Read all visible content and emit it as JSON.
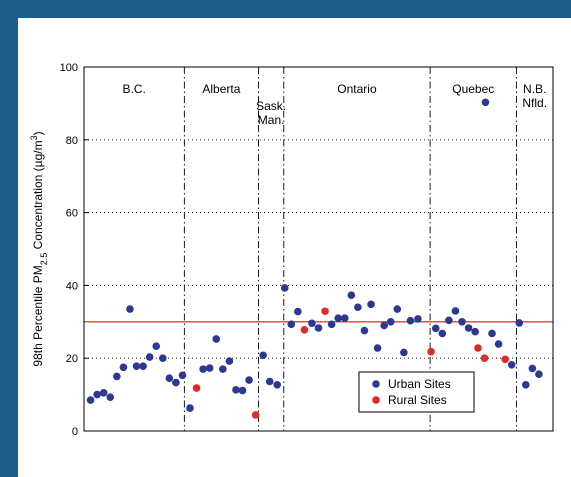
{
  "colors": {
    "frame": "#1b5e8c",
    "urban": "#2b3990",
    "rural": "#e02a27",
    "reference": "#e0403a"
  },
  "chart_data": {
    "type": "scatter",
    "ylabel_prefix": "98th Percentile PM",
    "ylabel_sub": "2.5",
    "ylabel_mid": " Concentration (µg/m",
    "ylabel_sup": "3",
    "ylabel_suffix": ")",
    "ylim": [
      0,
      100
    ],
    "yticks": [
      0,
      20,
      40,
      60,
      80,
      100
    ],
    "xlim": [
      0,
      50
    ],
    "grid": "dotted horizontal",
    "legend_position": "bottom-right",
    "reference_line": 30,
    "regions": [
      {
        "label": "B.C.",
        "x_start": 0,
        "x_end": 10.7
      },
      {
        "label": "Alberta",
        "x_start": 10.7,
        "x_end": 18.6
      },
      {
        "label": "Sask.",
        "label2": "Man.",
        "x_start": 18.6,
        "x_end": 21.3
      },
      {
        "label": "Ontario",
        "x_start": 21.3,
        "x_end": 36.9
      },
      {
        "label": "Quebec",
        "x_start": 36.9,
        "x_end": 46.1
      },
      {
        "label": "N.B.",
        "label2": "Nfld.",
        "x_start": 46.1,
        "x_end": 50
      }
    ],
    "series": [
      {
        "name": "Urban Sites",
        "points": [
          [
            0.7,
            8.5
          ],
          [
            1.4,
            10
          ],
          [
            2.1,
            10.5
          ],
          [
            2.8,
            9.3
          ],
          [
            3.5,
            15
          ],
          [
            4.2,
            17.5
          ],
          [
            4.9,
            33.5
          ],
          [
            5.6,
            17.8
          ],
          [
            6.3,
            17.8
          ],
          [
            7.0,
            20.3
          ],
          [
            7.7,
            23.3
          ],
          [
            8.4,
            20
          ],
          [
            9.1,
            14.5
          ],
          [
            9.8,
            13.3
          ],
          [
            10.5,
            15.3
          ],
          [
            11.3,
            6.3
          ],
          [
            12.7,
            17
          ],
          [
            13.4,
            17.3
          ],
          [
            14.1,
            25.3
          ],
          [
            14.8,
            17
          ],
          [
            15.5,
            19.2
          ],
          [
            16.2,
            11.3
          ],
          [
            16.9,
            11.1
          ],
          [
            17.6,
            14
          ],
          [
            19.1,
            20.8
          ],
          [
            19.8,
            13.6
          ],
          [
            20.6,
            12.7
          ],
          [
            21.4,
            39.3
          ],
          [
            22.1,
            29.3
          ],
          [
            22.8,
            32.8
          ],
          [
            24.3,
            29.6
          ],
          [
            25.0,
            28.3
          ],
          [
            26.4,
            29.3
          ],
          [
            27.1,
            31
          ],
          [
            27.8,
            31
          ],
          [
            28.5,
            37.3
          ],
          [
            29.2,
            34
          ],
          [
            29.9,
            27.6
          ],
          [
            30.6,
            34.8
          ],
          [
            31.3,
            22.8
          ],
          [
            32.0,
            29
          ],
          [
            32.7,
            30
          ],
          [
            33.4,
            33.5
          ],
          [
            34.1,
            21.6
          ],
          [
            34.8,
            30.3
          ],
          [
            35.6,
            30.8
          ],
          [
            37.5,
            28.2
          ],
          [
            38.2,
            26.8
          ],
          [
            38.9,
            30.4
          ],
          [
            39.6,
            33
          ],
          [
            40.3,
            30
          ],
          [
            41.0,
            28.3
          ],
          [
            41.7,
            27.3
          ],
          [
            42.8,
            90.3
          ],
          [
            43.5,
            26.8
          ],
          [
            44.2,
            23.9
          ],
          [
            45.6,
            18.2
          ],
          [
            46.4,
            29.7
          ],
          [
            47.1,
            12.7
          ],
          [
            47.8,
            17.2
          ],
          [
            48.5,
            15.6
          ]
        ]
      },
      {
        "name": "Rural Sites",
        "points": [
          [
            12.0,
            11.8
          ],
          [
            18.3,
            4.4
          ],
          [
            23.5,
            27.8
          ],
          [
            25.7,
            32.9
          ],
          [
            37.0,
            21.8
          ],
          [
            42.0,
            22.8
          ],
          [
            42.7,
            20
          ],
          [
            44.9,
            19.7
          ]
        ]
      }
    ]
  }
}
